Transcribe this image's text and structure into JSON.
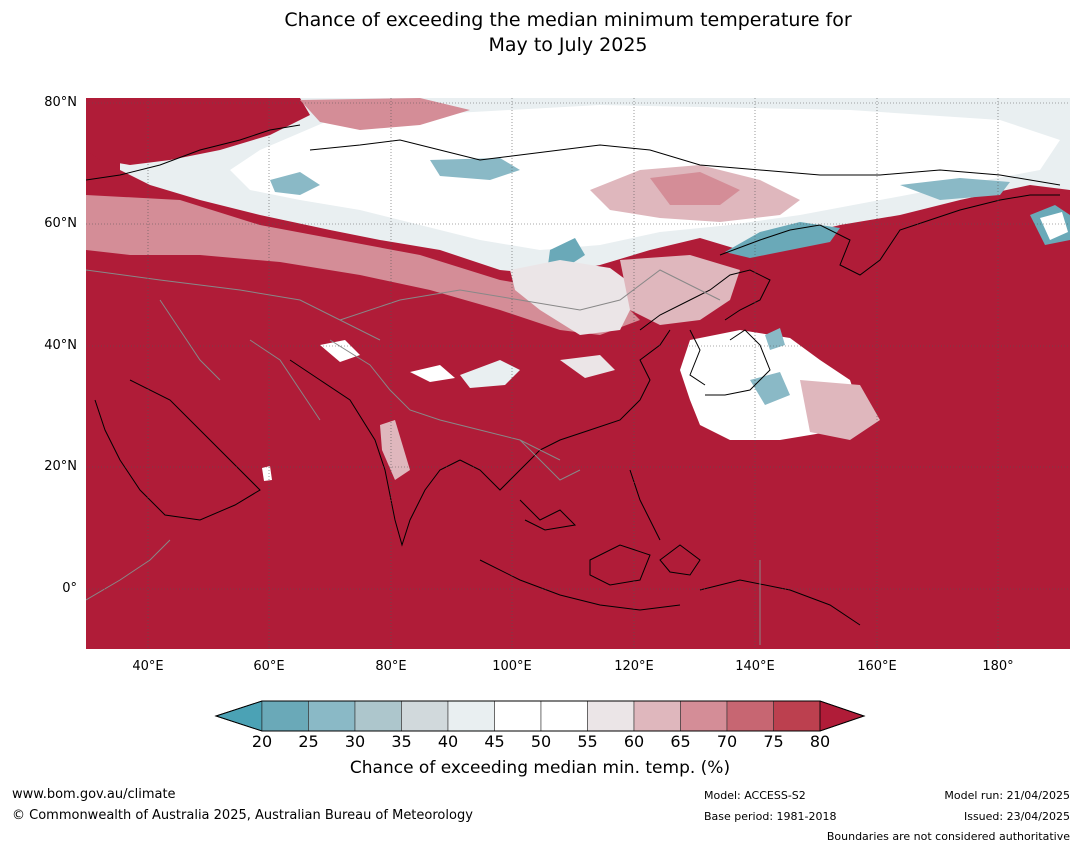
{
  "title": {
    "line1": "Chance of exceeding the median minimum temperature for",
    "line2": "May to July 2025"
  },
  "map": {
    "lat_labels": [
      "80°N",
      "60°N",
      "40°N",
      "20°N",
      "0°"
    ],
    "lon_labels": [
      "40°E",
      "60°E",
      "80°E",
      "100°E",
      "120°E",
      "140°E",
      "160°E",
      "180°"
    ],
    "background_color": "#b01c38"
  },
  "colorbar": {
    "title": "Chance of exceeding median min. temp. (%)",
    "ticks": [
      "20",
      "25",
      "30",
      "35",
      "40",
      "45",
      "50",
      "55",
      "60",
      "65",
      "70",
      "75",
      "80"
    ],
    "colors": [
      "#6aa9b8",
      "#8ab9c6",
      "#adc6cc",
      "#d1d9dc",
      "#e9eff1",
      "#ffffff",
      "#ffffff",
      "#ebe5e7",
      "#dfb7bd",
      "#d48d97",
      "#c76672",
      "#bc404f"
    ],
    "under_color": "#4ba2b5",
    "over_color": "#b01c38"
  },
  "footer": {
    "website": "www.bom.gov.au/climate",
    "copyright": "© Commonwealth of Australia 2025, Australian Bureau of Meteorology",
    "model": "Model: ACCESS-S2",
    "base_period": "Base period: 1981-2018",
    "model_run": "Model run: 21/04/2025",
    "issued": "Issued: 23/04/2025",
    "disclaimer": "Boundaries are not considered authoritative"
  }
}
